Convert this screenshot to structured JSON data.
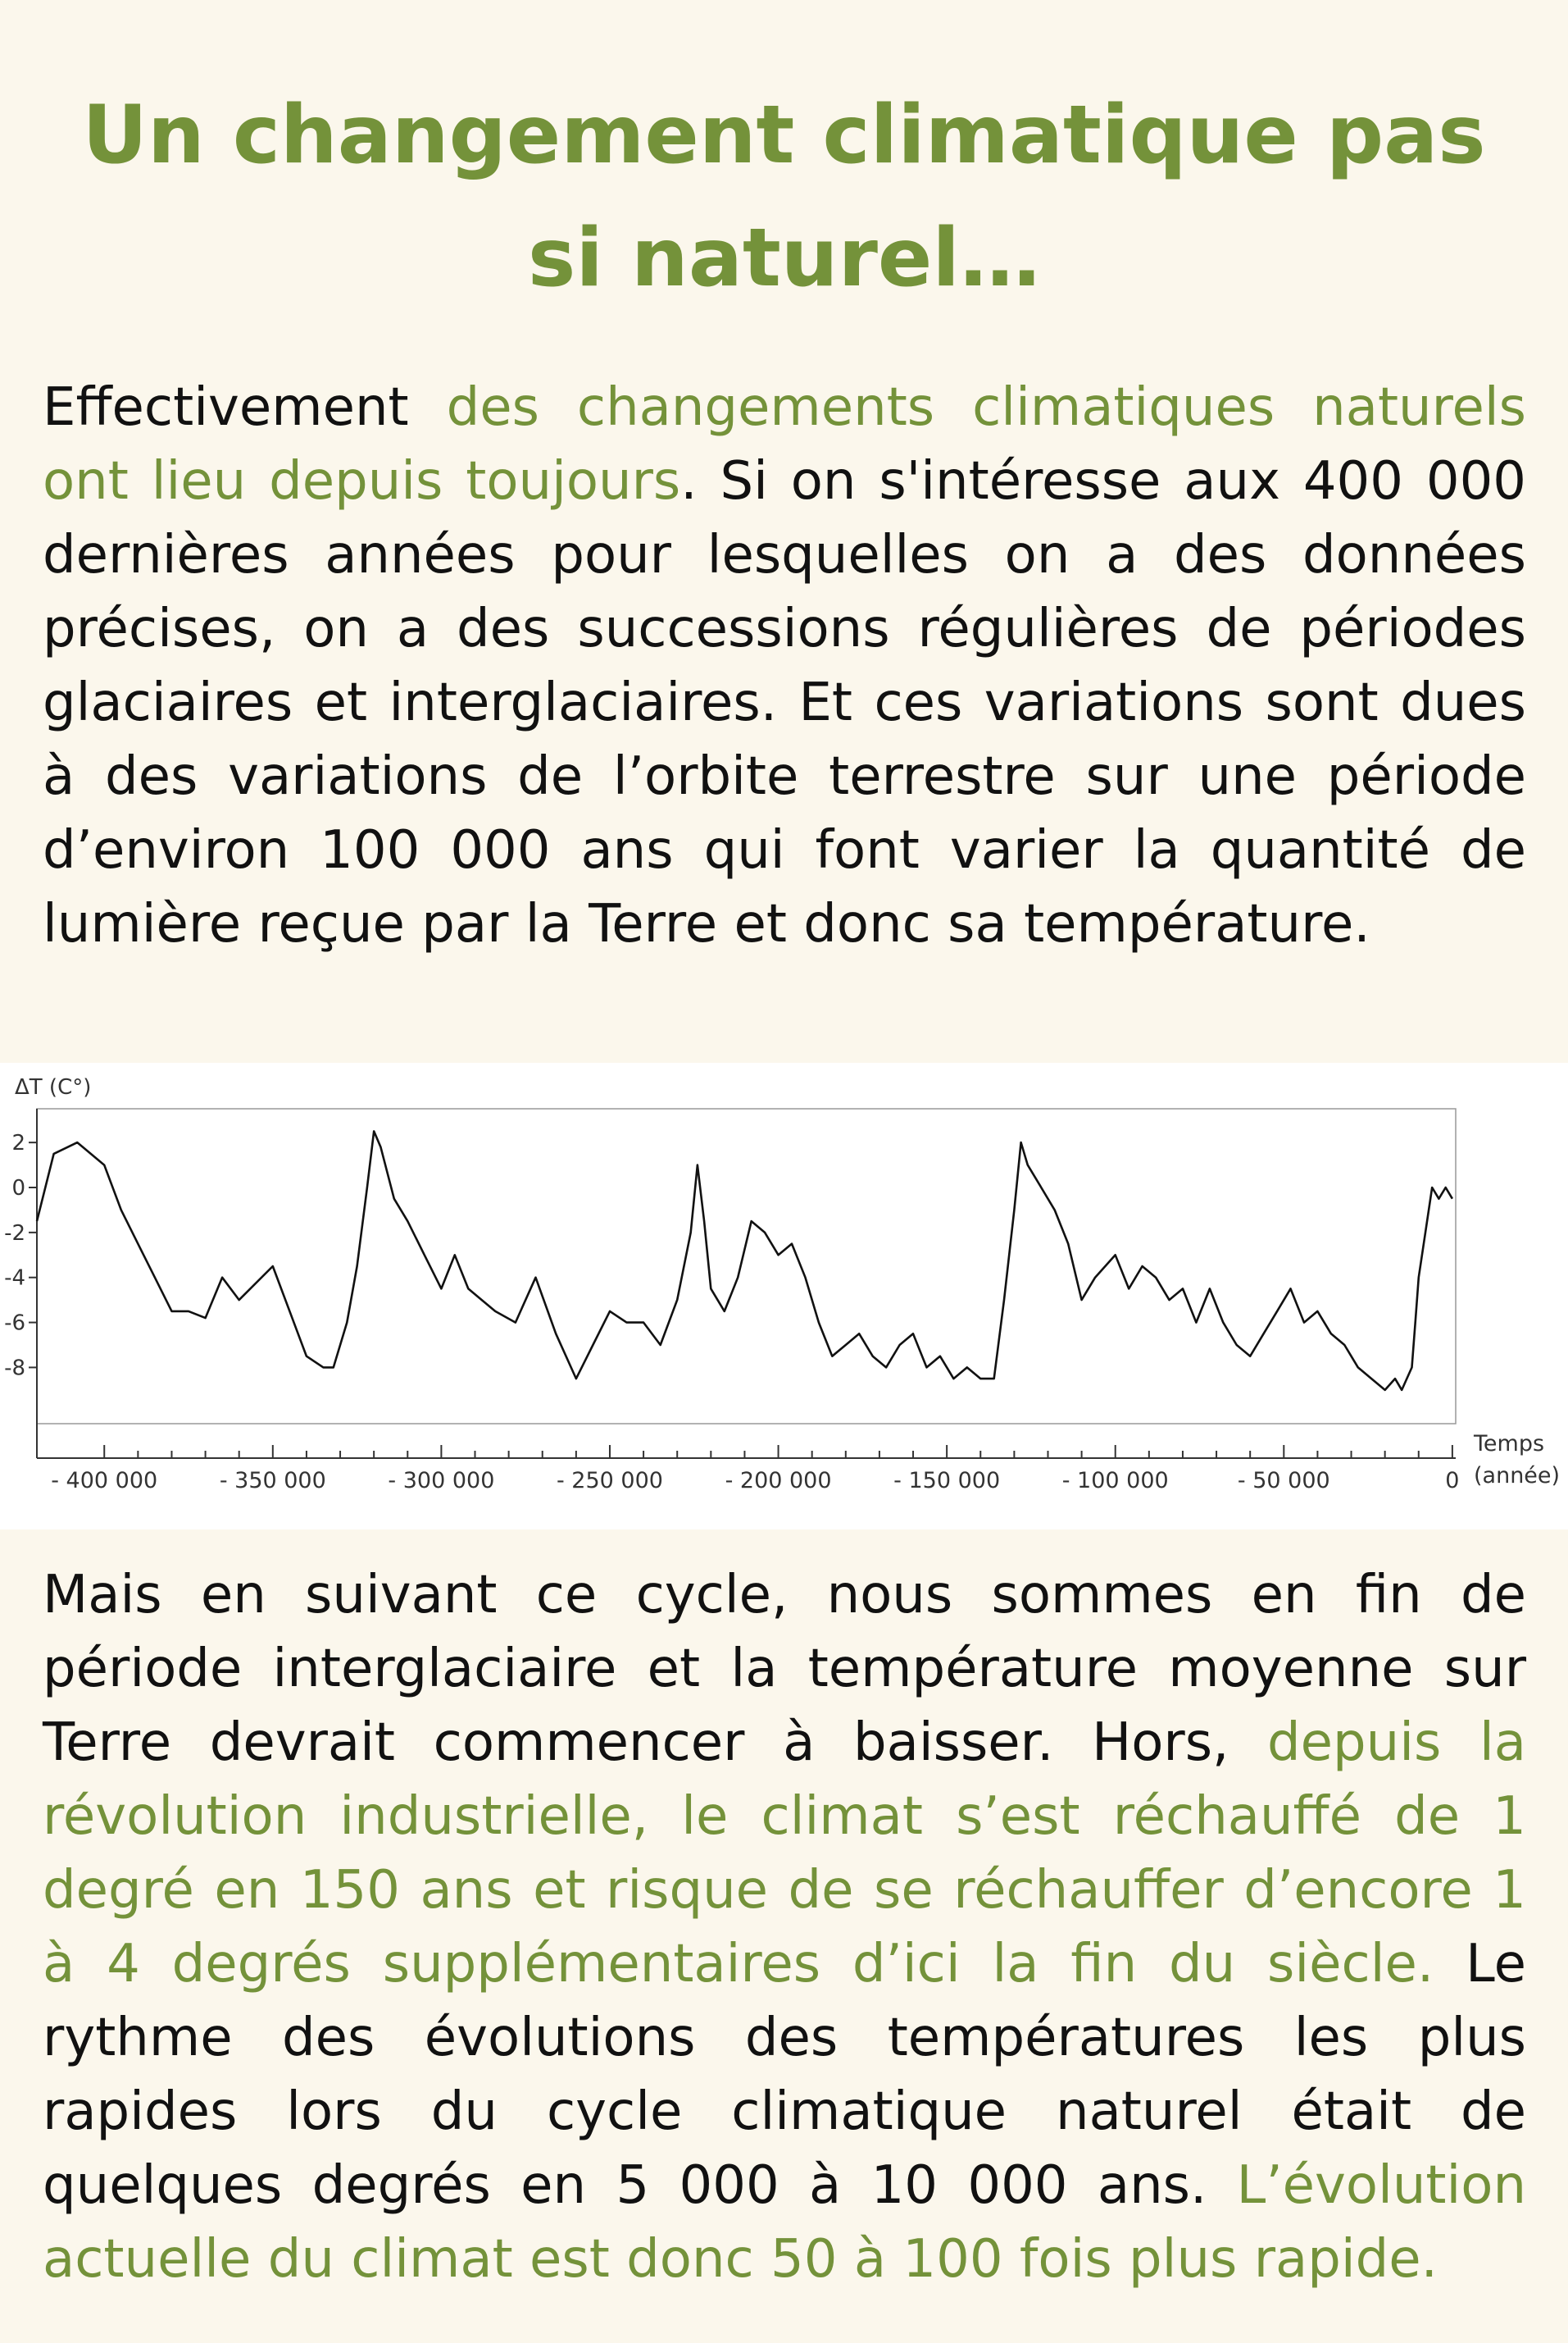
{
  "title": "Un changement climatique pas si naturel…",
  "intro": {
    "t1": "Effectivement ",
    "h1": "des changements climatiques naturels ont lieu depuis toujours",
    "t2": ". Si on s'intéresse aux 400 000 dernières années pour lesquelles on a des données précises, on a des successions régulières de périodes glaciaires et interglaciaires. Et ces variations sont dues à des variations de l’orbite terrestre sur une période d’environ 100 000 ans qui font varier la quantité de lumière reçue par la Terre et donc sa température."
  },
  "conclusion": {
    "t1": "Mais en suivant ce cycle, nous sommes en fin de période interglaciaire et la température moyenne sur Terre devrait commencer à baisser. Hors, ",
    "h1": "depuis la révolution industrielle, le climat s’est réchauffé de 1 degré en 150 ans et risque de se réchauffer d’encore 1 à 4 degrés supplémentaires d’ici la fin du siècle.",
    "t2": "  Le rythme des évolutions des températures les plus rapides lors du cycle climatique naturel était de quelques degrés en 5 000 à 10 000 ans. ",
    "h2": "L’évolution actuelle du climat est donc 50 à 100 fois plus rapide."
  },
  "colors": {
    "accent": "#74923A",
    "text": "#111111",
    "background": "#FBF7EC",
    "line": "#111111"
  },
  "chart_data": {
    "type": "line",
    "title": "",
    "ylabel": "ΔT (C°)",
    "xlabel_line1": "Temps",
    "xlabel_line2": "(année)",
    "xlim": [
      -420000,
      1000
    ],
    "ylim": [
      -10.5,
      3.5
    ],
    "yticks": [
      2,
      0,
      -2,
      -4,
      -6,
      -8
    ],
    "ytick_labels": [
      "2",
      "0",
      "-2",
      "-4",
      "-6",
      "-8"
    ],
    "xticks": [
      -400000,
      -350000,
      -300000,
      -250000,
      -200000,
      -150000,
      -100000,
      -50000,
      0
    ],
    "xtick_labels": [
      "- 400 000",
      "- 350 000",
      "- 300 000",
      "- 250 000",
      "- 200 000",
      "- 150 000",
      "- 100 000",
      "- 50 000",
      "0"
    ],
    "grid": false,
    "series": [
      {
        "x": [
          -420000,
          -415000,
          -408000,
          -400000,
          -395000,
          -390000,
          -385000,
          -380000,
          -375000,
          -370000,
          -365000,
          -360000,
          -350000,
          -345000,
          -340000,
          -335000,
          -332000,
          -328000,
          -325000,
          -322000,
          -320000,
          -318000,
          -314000,
          -310000,
          -305000,
          -300000,
          -296000,
          -292000,
          -288000,
          -284000,
          -278000,
          -272000,
          -266000,
          -260000,
          -255000,
          -250000,
          -245000,
          -240000,
          -235000,
          -230000,
          -226000,
          -224000,
          -222000,
          -220000,
          -216000,
          -212000,
          -208000,
          -204000,
          -200000,
          -196000,
          -192000,
          -188000,
          -184000,
          -180000,
          -176000,
          -172000,
          -168000,
          -164000,
          -160000,
          -156000,
          -152000,
          -148000,
          -144000,
          -140000,
          -136000,
          -133000,
          -130000,
          -128000,
          -126000,
          -122000,
          -118000,
          -114000,
          -110000,
          -106000,
          -100000,
          -96000,
          -92000,
          -88000,
          -84000,
          -80000,
          -76000,
          -72000,
          -68000,
          -64000,
          -60000,
          -56000,
          -52000,
          -48000,
          -44000,
          -40000,
          -36000,
          -32000,
          -28000,
          -24000,
          -20000,
          -17000,
          -15000,
          -12000,
          -11000,
          -10000,
          -8000,
          -6000,
          -4000,
          -2000,
          0
        ],
        "y": [
          -1.5,
          1.5,
          2.0,
          1.0,
          -1.0,
          -2.5,
          -4.0,
          -5.5,
          -5.5,
          -5.8,
          -4.0,
          -5.0,
          -3.5,
          -5.5,
          -7.5,
          -8.0,
          -8.0,
          -6.0,
          -3.5,
          0.0,
          2.5,
          1.8,
          -0.5,
          -1.5,
          -3.0,
          -4.5,
          -3.0,
          -4.5,
          -5.0,
          -5.5,
          -6.0,
          -4.0,
          -6.5,
          -8.5,
          -7.0,
          -5.5,
          -6.0,
          -6.0,
          -7.0,
          -5.0,
          -2.0,
          1.0,
          -1.5,
          -4.5,
          -5.5,
          -4.0,
          -1.5,
          -2.0,
          -3.0,
          -2.5,
          -4.0,
          -6.0,
          -7.5,
          -7.0,
          -6.5,
          -7.5,
          -8.0,
          -7.0,
          -6.5,
          -8.0,
          -7.5,
          -8.5,
          -8.0,
          -8.5,
          -8.5,
          -5.0,
          -1.0,
          2.0,
          1.0,
          0.0,
          -1.0,
          -2.5,
          -5.0,
          -4.0,
          -3.0,
          -4.5,
          -3.5,
          -4.0,
          -5.0,
          -4.5,
          -6.0,
          -4.5,
          -6.0,
          -7.0,
          -7.5,
          -6.5,
          -5.5,
          -4.5,
          -6.0,
          -5.5,
          -6.5,
          -7.0,
          -8.0,
          -8.5,
          -9.0,
          -8.5,
          -9.0,
          -8.0,
          -6.0,
          -4.0,
          -2.0,
          0.0,
          -0.5,
          0.0,
          -0.5
        ]
      }
    ]
  }
}
